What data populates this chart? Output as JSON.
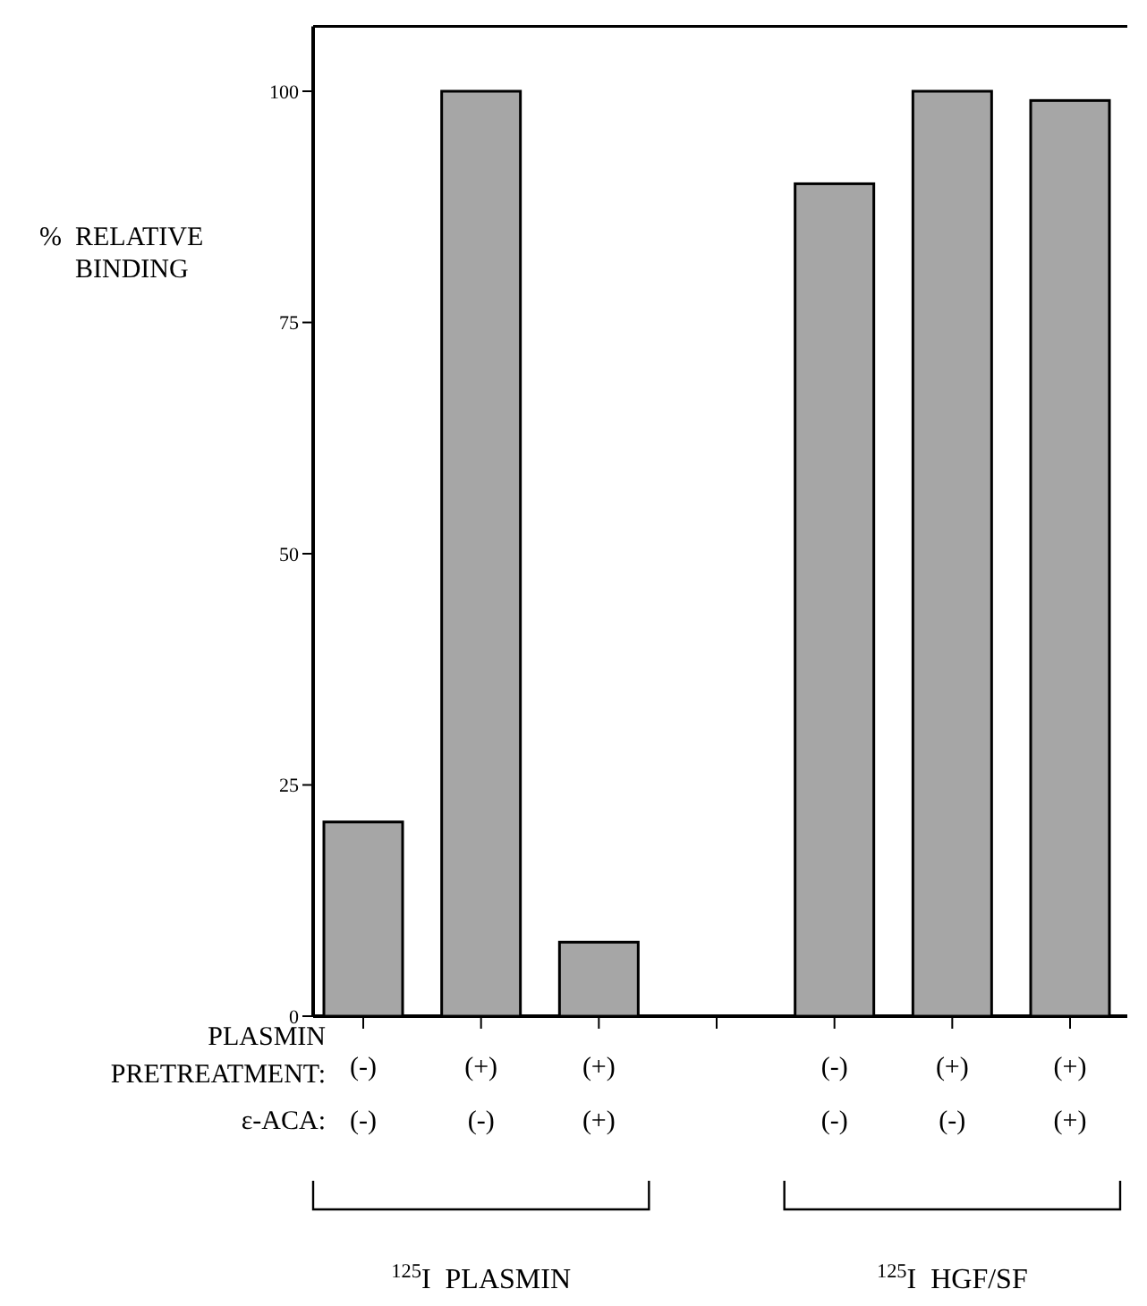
{
  "chart_data": {
    "type": "bar",
    "ylabel": "% RELATIVE BINDING",
    "categories": [
      "(-)\n(-)",
      "(+)\n(-)",
      "(+)\n(+)",
      null,
      "(-)\n(-)",
      "(+)\n(-)",
      "(+)\n(+)"
    ],
    "values": [
      21,
      100,
      8,
      null,
      90,
      100,
      99
    ],
    "color": "#a6a6a6",
    "ylim": [
      0,
      107
    ],
    "yticks": [
      0,
      25,
      50,
      75,
      100
    ],
    "grid": false,
    "annotations": [
      "PLASMIN\nPRETREATMENT:",
      "ε-ACA:",
      "$^{125}$I  PLASMIN",
      "$^{125}$I  HGF/SF"
    ]
  }
}
